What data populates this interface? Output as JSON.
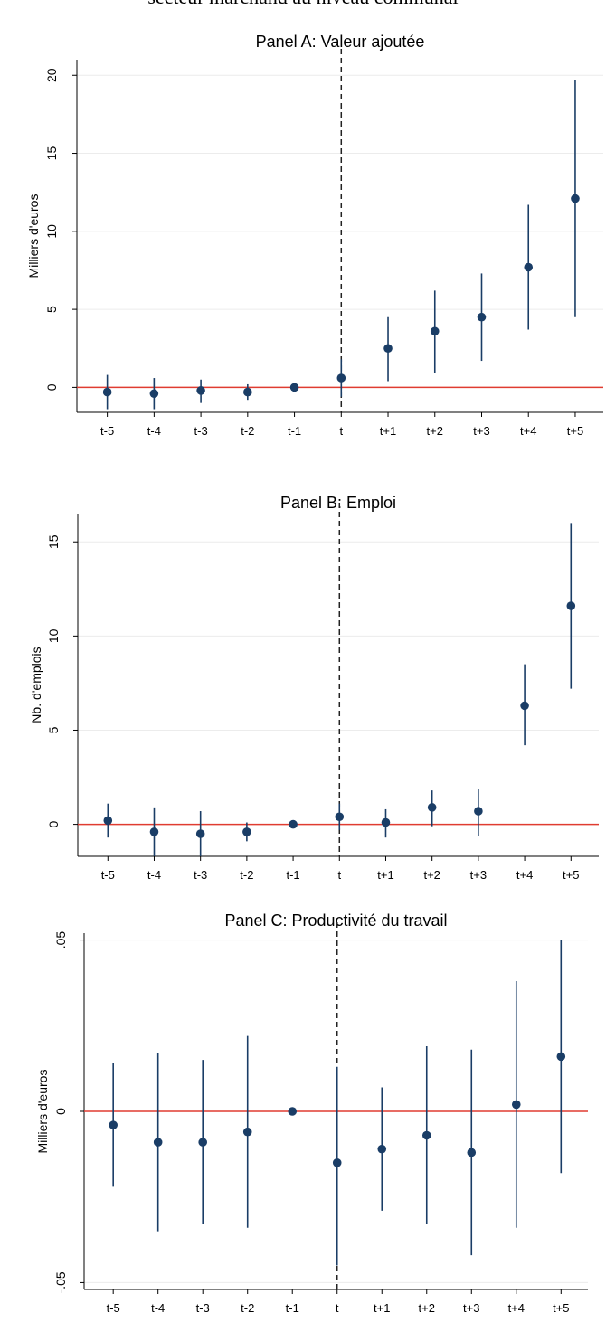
{
  "heading": "secteur marchand au niveau communal",
  "chart_data": [
    {
      "type": "scatter",
      "title": "Panel A: Valeur ajoutée",
      "xlabel": "",
      "ylabel": "Milliers d'euros",
      "categories": [
        "t-5",
        "t-4",
        "t-3",
        "t-2",
        "t-1",
        "t",
        "t+1",
        "t+2",
        "t+3",
        "t+4",
        "t+5"
      ],
      "values": [
        -0.3,
        -0.4,
        -0.2,
        -0.3,
        0.0,
        0.6,
        2.5,
        3.6,
        4.5,
        7.7,
        12.1
      ],
      "ci_low": [
        -1.4,
        -1.4,
        -1.0,
        -0.8,
        0.0,
        -0.6,
        0.4,
        0.9,
        1.7,
        3.7,
        4.5
      ],
      "ci_high": [
        0.8,
        0.6,
        0.5,
        0.2,
        0.0,
        1.8,
        4.5,
        6.2,
        7.3,
        11.7,
        19.7
      ],
      "yticks": [
        0,
        5,
        10,
        15,
        20
      ],
      "ytick_labels": [
        "0",
        "5",
        "10",
        "15",
        "20"
      ],
      "ylim": [
        -1.6,
        21
      ],
      "zero_line": 0,
      "event_line": "t",
      "grid": true,
      "colors": {
        "marker": "#1a3d66",
        "zero_line": "#e03c31",
        "event_line": "#222222",
        "grid": "#ececec"
      }
    },
    {
      "type": "scatter",
      "title": "Panel B: Emploi",
      "xlabel": "",
      "ylabel": "Nb. d'emplois",
      "categories": [
        "t-5",
        "t-4",
        "t-3",
        "t-2",
        "t-1",
        "t",
        "t+1",
        "t+2",
        "t+3",
        "t+4",
        "t+5"
      ],
      "values": [
        0.2,
        -0.4,
        -0.5,
        -0.4,
        0.0,
        0.4,
        0.1,
        0.9,
        0.7,
        6.3,
        11.6
      ],
      "ci_low": [
        -0.7,
        -1.7,
        -1.7,
        -0.9,
        0.0,
        -0.3,
        -0.7,
        -0.1,
        -0.6,
        4.2,
        7.2
      ],
      "ci_high": [
        1.1,
        0.9,
        0.7,
        0.1,
        0.0,
        1.1,
        0.8,
        1.8,
        1.9,
        8.5,
        16.0
      ],
      "yticks": [
        0,
        5,
        10,
        15
      ],
      "ytick_labels": [
        "0",
        "5",
        "10",
        "15"
      ],
      "ylim": [
        -1.7,
        16.5
      ],
      "zero_line": 0,
      "event_line": "t",
      "grid": true,
      "colors": {
        "marker": "#1a3d66",
        "zero_line": "#e03c31",
        "event_line": "#222222",
        "grid": "#ececec"
      }
    },
    {
      "type": "scatter",
      "title": "Panel C: Productivité du travail",
      "xlabel": "",
      "ylabel": "Milliers d'euros",
      "categories": [
        "t-5",
        "t-4",
        "t-3",
        "t-2",
        "t-1",
        "t",
        "t+1",
        "t+2",
        "t+3",
        "t+4",
        "t+5"
      ],
      "values": [
        -0.004,
        -0.009,
        -0.009,
        -0.006,
        0.0,
        -0.015,
        -0.011,
        -0.007,
        -0.012,
        0.002,
        0.016
      ],
      "ci_low": [
        -0.022,
        -0.035,
        -0.033,
        -0.034,
        0.0,
        -0.045,
        -0.029,
        -0.033,
        -0.042,
        -0.034,
        -0.018
      ],
      "ci_high": [
        0.014,
        0.017,
        0.015,
        0.022,
        0.0,
        0.013,
        0.007,
        0.019,
        0.018,
        0.038,
        0.05
      ],
      "yticks": [
        -0.05,
        0,
        0.05
      ],
      "ytick_labels": [
        "-.05",
        "0",
        ".05"
      ],
      "ylim": [
        -0.052,
        0.052
      ],
      "zero_line": 0,
      "event_line": "t",
      "grid": true,
      "colors": {
        "marker": "#1a3d66",
        "zero_line": "#e03c31",
        "event_line": "#222222",
        "grid": "#ececec"
      }
    }
  ]
}
